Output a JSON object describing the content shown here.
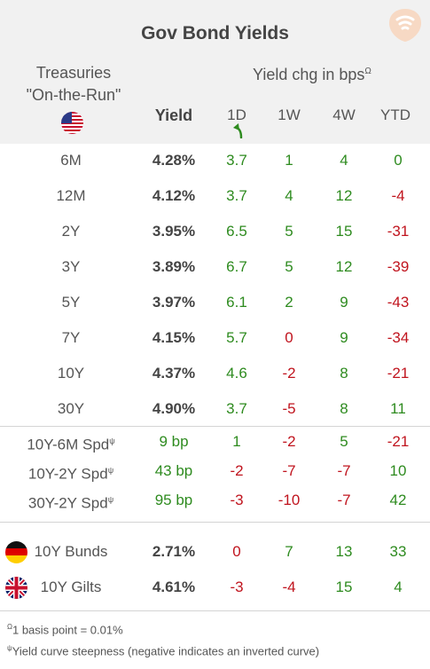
{
  "title": "Gov Bond Yields",
  "treasuries_label_line1": "Treasuries",
  "treasuries_label_line2": "\"On-the-Run\"",
  "yield_chg_label": "Yield chg in bps",
  "yield_chg_sup": "Ω",
  "columns": {
    "yield": "Yield",
    "d1": "1D",
    "w1": "1W",
    "w4": "4W",
    "ytd": "YTD"
  },
  "treasury_rows": [
    {
      "label": "6M",
      "yield": "4.28%",
      "d1": "3.7",
      "w1": "1",
      "w4": "4",
      "ytd": "0"
    },
    {
      "label": "12M",
      "yield": "4.12%",
      "d1": "3.7",
      "w1": "4",
      "w4": "12",
      "ytd": "-4"
    },
    {
      "label": "2Y",
      "yield": "3.95%",
      "d1": "6.5",
      "w1": "5",
      "w4": "15",
      "ytd": "-31"
    },
    {
      "label": "3Y",
      "yield": "3.89%",
      "d1": "6.7",
      "w1": "5",
      "w4": "12",
      "ytd": "-39"
    },
    {
      "label": "5Y",
      "yield": "3.97%",
      "d1": "6.1",
      "w1": "2",
      "w4": "9",
      "ytd": "-43"
    },
    {
      "label": "7Y",
      "yield": "4.15%",
      "d1": "5.7",
      "w1": "0",
      "w4": "9",
      "ytd": "-34"
    },
    {
      "label": "10Y",
      "yield": "4.37%",
      "d1": "4.6",
      "w1": "-2",
      "w4": "8",
      "ytd": "-21"
    },
    {
      "label": "30Y",
      "yield": "4.90%",
      "d1": "3.7",
      "w1": "-5",
      "w4": "8",
      "ytd": "11"
    }
  ],
  "spread_rows": [
    {
      "label": "10Y-6M Spd",
      "sup": "ψ",
      "yield": "9 bp",
      "d1": "1",
      "w1": "-2",
      "w4": "5",
      "ytd": "-21"
    },
    {
      "label": "10Y-2Y Spd",
      "sup": "ψ",
      "yield": "43 bp",
      "d1": "-2",
      "w1": "-7",
      "w4": "-7",
      "ytd": "10"
    },
    {
      "label": "30Y-2Y Spd",
      "sup": "ψ",
      "yield": "95 bp",
      "d1": "-3",
      "w1": "-10",
      "w4": "-7",
      "ytd": "42"
    }
  ],
  "intl_rows": [
    {
      "label": "10Y Bunds",
      "flag": "germany-flag-icon",
      "yield": "2.71%",
      "d1": "0",
      "w1": "7",
      "w4": "13",
      "ytd": "33"
    },
    {
      "label": "10Y Gilts",
      "flag": "uk-flag-icon",
      "yield": "4.61%",
      "d1": "-3",
      "w1": "-4",
      "w4": "15",
      "ytd": "4"
    }
  ],
  "footnote1_sup": "Ω",
  "footnote1": "1 basis point = 0.01%",
  "footnote2_sup": "ψ",
  "footnote2": "Yield curve steepness (negative indicates an inverted curve)",
  "colors": {
    "positive": "#2e8b1f",
    "negative": "#c0141e",
    "header_bg": "#f1f1f1"
  },
  "icons": [
    "logo-icon",
    "us-flag-icon",
    "sort-arrow-icon",
    "germany-flag-icon",
    "uk-flag-icon"
  ]
}
